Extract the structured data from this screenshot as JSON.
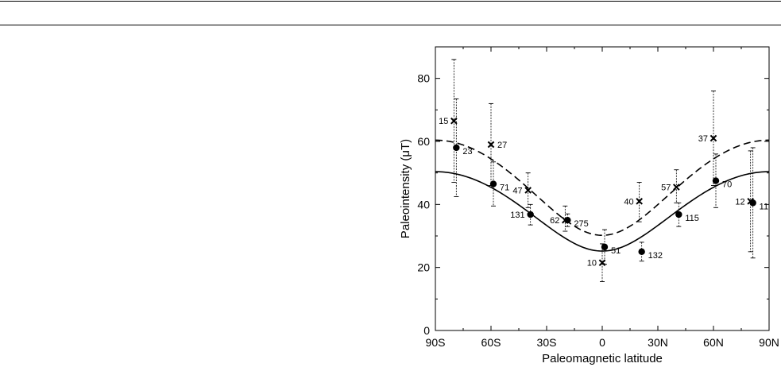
{
  "chart_data": {
    "type": "scatter",
    "title": "",
    "xlabel": "Paleomagnetic latitude",
    "ylabel": "Paleointensity (μT)",
    "xlim": [
      -90,
      90
    ],
    "ylim": [
      0,
      90
    ],
    "x_ticks": [
      {
        "value": -90,
        "label": "90S"
      },
      {
        "value": -60,
        "label": "60S"
      },
      {
        "value": -30,
        "label": "30S"
      },
      {
        "value": 0,
        "label": "0"
      },
      {
        "value": 30,
        "label": "30N"
      },
      {
        "value": 60,
        "label": "60N"
      },
      {
        "value": 90,
        "label": "90N"
      }
    ],
    "y_ticks": [
      {
        "value": 0,
        "label": "0"
      },
      {
        "value": 20,
        "label": "20"
      },
      {
        "value": 40,
        "label": "40"
      },
      {
        "value": 60,
        "label": "60"
      },
      {
        "value": 80,
        "label": "80"
      }
    ],
    "grid": false,
    "series": [
      {
        "marker": "circle",
        "points": [
          {
            "x": -80,
            "y": 58.0,
            "low": 42.5,
            "high": 73.5,
            "label": "23",
            "label_pos": "right"
          },
          {
            "x": -60,
            "y": 46.5,
            "low": 39.5,
            "high": 53.5,
            "label": "71",
            "label_pos": "right"
          },
          {
            "x": -40,
            "y": 36.8,
            "low": 33.5,
            "high": 40.0,
            "label": "131",
            "label_pos": "left"
          },
          {
            "x": -20,
            "y": 35.0,
            "low": 33.0,
            "high": 37.0,
            "label": "275",
            "label_pos": "right"
          },
          {
            "x": 0,
            "y": 26.5,
            "low": 21.0,
            "high": 32.0,
            "label": "51",
            "label_pos": "right"
          },
          {
            "x": 20,
            "y": 25.0,
            "low": 22.0,
            "high": 28.0,
            "label": "132",
            "label_pos": "right"
          },
          {
            "x": 40,
            "y": 36.8,
            "low": 33.0,
            "high": 40.5,
            "label": "115",
            "label_pos": "right"
          },
          {
            "x": 60,
            "y": 47.5,
            "low": 39.0,
            "high": 56.0,
            "label": "70",
            "label_pos": "right"
          },
          {
            "x": 80,
            "y": 40.5,
            "low": 23.0,
            "high": 58.0,
            "label": "11",
            "label_pos": "right"
          }
        ]
      },
      {
        "marker": "cross",
        "points": [
          {
            "x": -80,
            "y": 66.5,
            "low": 47.0,
            "high": 86.0,
            "label": "15",
            "label_pos": "left"
          },
          {
            "x": -60,
            "y": 59.0,
            "low": 46.0,
            "high": 72.0,
            "label": "27",
            "label_pos": "right"
          },
          {
            "x": -40,
            "y": 44.5,
            "low": 39.0,
            "high": 50.0,
            "label": "47",
            "label_pos": "left"
          },
          {
            "x": -20,
            "y": 35.0,
            "low": 31.5,
            "high": 39.5,
            "label": "62",
            "label_pos": "left"
          },
          {
            "x": 0,
            "y": 21.5,
            "low": 15.5,
            "high": 27.5,
            "label": "10",
            "label_pos": "left"
          },
          {
            "x": 20,
            "y": 41.0,
            "low": 34.5,
            "high": 47.0,
            "label": "40",
            "label_pos": "left"
          },
          {
            "x": 40,
            "y": 45.5,
            "low": 40.5,
            "high": 51.0,
            "label": "57",
            "label_pos": "left"
          },
          {
            "x": 60,
            "y": 61.0,
            "low": 46.0,
            "high": 76.0,
            "label": "37",
            "label_pos": "left"
          },
          {
            "x": 80,
            "y": 41.0,
            "low": 25.0,
            "high": 57.0,
            "label": "12",
            "label_pos": "left"
          }
        ]
      }
    ],
    "curves": [
      {
        "style": "solid",
        "equator_value": 25.2
      },
      {
        "style": "dashed",
        "equator_value": 30.2
      }
    ]
  }
}
